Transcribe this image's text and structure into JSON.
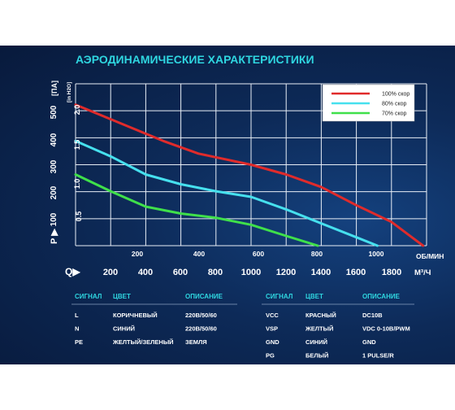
{
  "chart_data": {
    "type": "line",
    "title": "АЭРОДИНАМИЧЕСКИЕ ХАРАКТЕРИСТИКИ",
    "ylabel": "Р ▶",
    "ylabel_unit": "[ПА]",
    "ylabel2_unit": "[in H2O]",
    "xlabel": "Q▶",
    "xlabel_unit": "М³/Ч",
    "xlabel2_unit": "ОБ/МИН",
    "xlim": [
      0,
      2000
    ],
    "ylim": [
      0,
      580
    ],
    "x_ticks": [
      "200",
      "400",
      "600",
      "800",
      "1000",
      "1200",
      "1400",
      "1600",
      "1800"
    ],
    "x_ticks_cfm": [
      "200",
      "400",
      "600",
      "800",
      "1000"
    ],
    "y_ticks": [
      "100",
      "200",
      "300",
      "400",
      "500"
    ],
    "y_ticks_inh2o": [
      "0.5",
      "1.0",
      "1.5",
      "2.0"
    ],
    "grid": true,
    "legend_position": "top-right",
    "series": [
      {
        "name": "100% скор",
        "color": "#e02b2b",
        "x": [
          0,
          250,
          500,
          700,
          1000,
          1200,
          1400,
          1600,
          1800,
          1980
        ],
        "y": [
          505,
          440,
          375,
          330,
          290,
          255,
          210,
          145,
          85,
          0
        ]
      },
      {
        "name": "80% скор",
        "color": "#46e0ee",
        "x": [
          0,
          200,
          400,
          600,
          800,
          1000,
          1200,
          1400,
          1600,
          1720
        ],
        "y": [
          375,
          320,
          255,
          220,
          195,
          175,
          130,
          80,
          30,
          0
        ]
      },
      {
        "name": "70% скор",
        "color": "#3fe04a",
        "x": [
          0,
          200,
          400,
          600,
          800,
          1000,
          1200,
          1380
        ],
        "y": [
          255,
          195,
          140,
          115,
          100,
          75,
          35,
          0
        ]
      }
    ]
  },
  "table_left": {
    "headers": [
      "СИГНАЛ",
      "ЦВЕТ",
      "ОПИСАНИЕ"
    ],
    "rows": [
      [
        "L",
        "КОРИЧНЕВЫЙ",
        "220В/50/60"
      ],
      [
        "N",
        "СИНИЙ",
        "220В/50/60"
      ],
      [
        "PE",
        "ЖЕЛТЫЙ/ЗЕЛЕНЫЙ",
        "ЗЕМЛЯ"
      ]
    ]
  },
  "table_right": {
    "headers": [
      "СИГНАЛ",
      "ЦВЕТ",
      "ОПИСАНИЕ"
    ],
    "rows": [
      [
        "VCC",
        "КРАСНЫЙ",
        "DC10В"
      ],
      [
        "VSP",
        "ЖЕЛТЫЙ",
        "VDC 0-10В/PWM"
      ],
      [
        "GND",
        "СИНИЙ",
        "GND"
      ],
      [
        "PG",
        "БЕЛЫЙ",
        "1 PULSE/R"
      ]
    ]
  }
}
